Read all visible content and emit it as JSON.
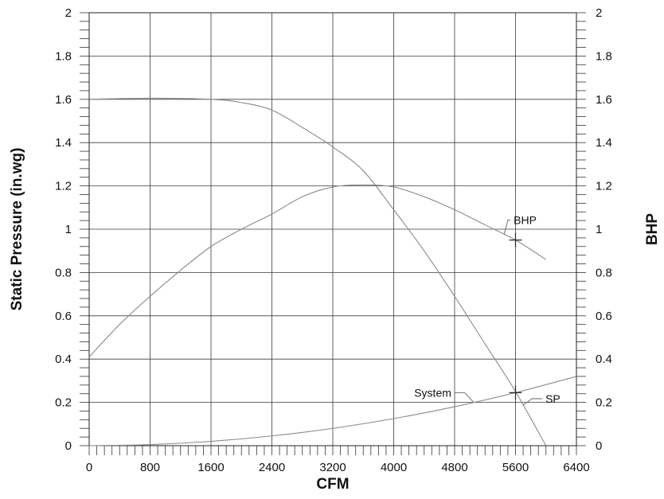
{
  "chart_data": {
    "type": "line",
    "title": "",
    "xlabel": "CFM",
    "ylabel": "Static Pressure  (in.wg)",
    "y2label": "BHP",
    "xlim": [
      0,
      6400
    ],
    "ylim": [
      0,
      2
    ],
    "y2lim": [
      0,
      2
    ],
    "grid": true,
    "x_ticks": [
      "0",
      "800",
      "1600",
      "2400",
      "3200",
      "4000",
      "4800",
      "5600",
      "6400"
    ],
    "x_tick_values": [
      0,
      800,
      1600,
      2400,
      3200,
      4000,
      4800,
      5600,
      6400
    ],
    "y_ticks": [
      "0",
      "0.2",
      "0.4",
      "0.6",
      "0.8",
      "1",
      "1.2",
      "1.4",
      "1.6",
      "1.8",
      "2"
    ],
    "y_tick_values": [
      0,
      0.2,
      0.4,
      0.6,
      0.8,
      1,
      1.2,
      1.4,
      1.6,
      1.8,
      2
    ],
    "series": [
      {
        "name": "SP",
        "x": [
          0,
          800,
          1600,
          2000,
          2400,
          2800,
          3200,
          3600,
          4000,
          4400,
          4800,
          5200,
          5600,
          6000
        ],
        "y": [
          1.6,
          1.605,
          1.6,
          1.585,
          1.55,
          1.47,
          1.38,
          1.27,
          1.09,
          0.9,
          0.69,
          0.47,
          0.25,
          0.0
        ],
        "axis": "left"
      },
      {
        "name": "BHP",
        "x": [
          0,
          400,
          800,
          1200,
          1600,
          2000,
          2400,
          2800,
          3200,
          3600,
          4000,
          4400,
          4800,
          5200,
          5600,
          6000
        ],
        "y": [
          0.41,
          0.56,
          0.69,
          0.81,
          0.92,
          1.0,
          1.07,
          1.15,
          1.195,
          1.205,
          1.195,
          1.15,
          1.09,
          1.02,
          0.95,
          0.86
        ],
        "axis": "right"
      },
      {
        "name": "System",
        "x": [
          0,
          800,
          1600,
          2400,
          3200,
          4000,
          4800,
          5600,
          6400
        ],
        "y": [
          0,
          0.005,
          0.02,
          0.045,
          0.08,
          0.125,
          0.18,
          0.245,
          0.32
        ],
        "axis": "left"
      }
    ],
    "operating_points": [
      {
        "series": "SP",
        "x": 5600,
        "y": 0.245
      },
      {
        "series": "BHP",
        "x": 5600,
        "y": 0.95
      }
    ],
    "annotations": [
      {
        "text": "BHP",
        "series": "BHP",
        "at_x": 5450
      },
      {
        "text": "System",
        "series": "System",
        "at_x": 5050
      },
      {
        "text": "SP",
        "series": "SP",
        "at_x": 5700
      }
    ]
  }
}
